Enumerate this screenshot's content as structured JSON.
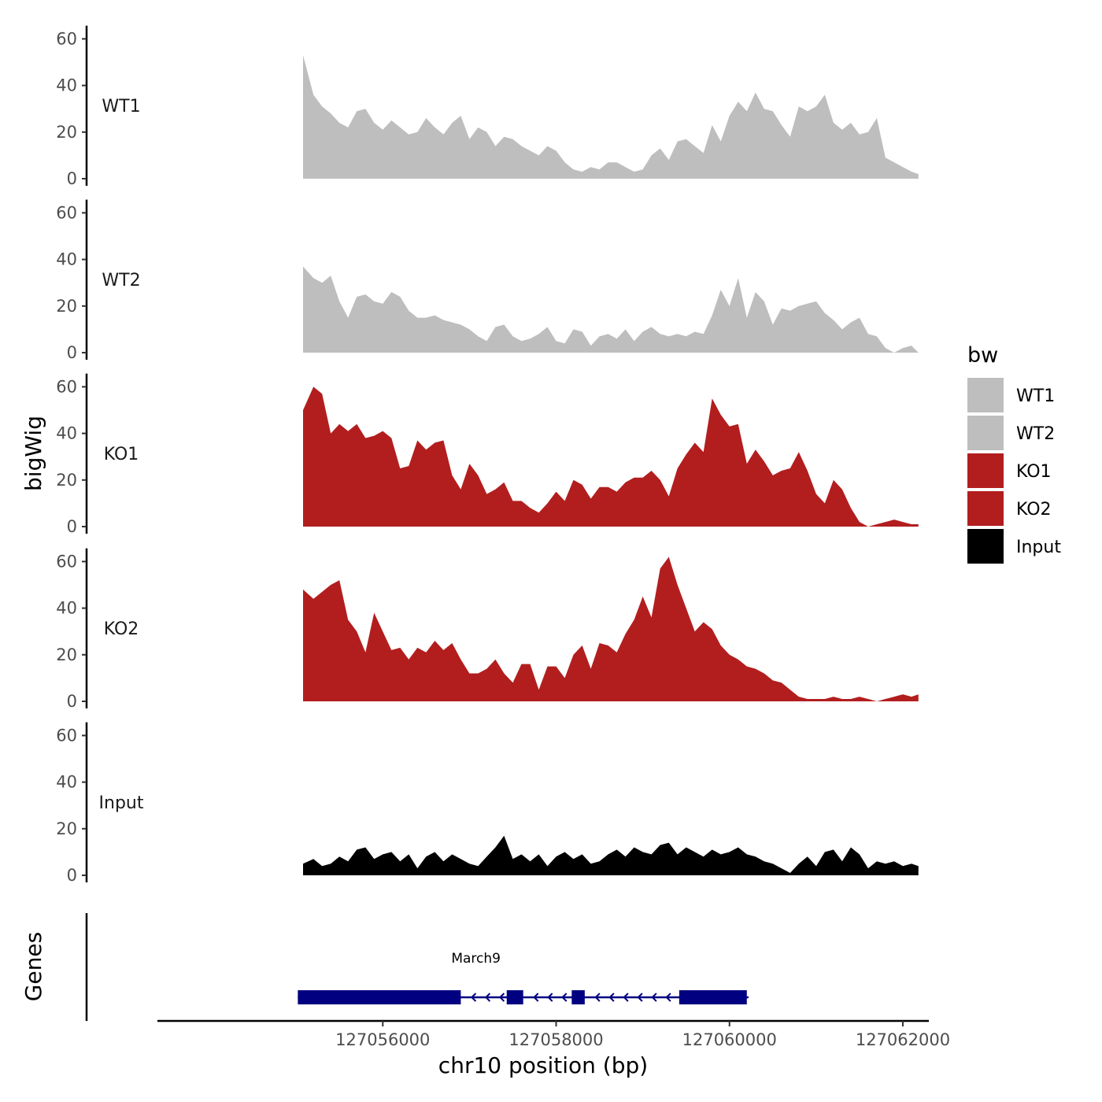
{
  "chart_data": {
    "type": "area",
    "chromosome": "chr10",
    "xlabel": "chr10 position (bp)",
    "ylabel": "bigWig",
    "gene_track_label": "Genes",
    "xlim": [
      127053400,
      127062300
    ],
    "x_ticks": [
      127056000,
      127058000,
      127060000,
      127062000
    ],
    "x_tick_labels": [
      "127056000",
      "127058000",
      "127060000",
      "127062000"
    ],
    "ylim": [
      0,
      65
    ],
    "y_ticks": [
      0,
      20,
      40,
      60
    ],
    "y_tick_labels": [
      "0",
      "20",
      "40",
      "60"
    ],
    "legend": {
      "title": "bw",
      "entries": [
        {
          "label": "WT1",
          "color": "#BEBEBE"
        },
        {
          "label": "WT2",
          "color": "#BEBEBE"
        },
        {
          "label": "KO1",
          "color": "#B21E1E"
        },
        {
          "label": "KO2",
          "color": "#B21E1E"
        },
        {
          "label": "Input",
          "color": "#000000"
        }
      ]
    },
    "series": [
      {
        "name": "WT1",
        "color": "#BEBEBE",
        "x": [
          127055080,
          127055200,
          127055300,
          127055400,
          127055500,
          127055600,
          127055700,
          127055800,
          127055900,
          127056000,
          127056100,
          127056200,
          127056300,
          127056400,
          127056500,
          127056600,
          127056700,
          127056800,
          127056900,
          127057000,
          127057100,
          127057200,
          127057300,
          127057400,
          127057500,
          127057600,
          127057700,
          127057800,
          127057900,
          127058000,
          127058100,
          127058200,
          127058300,
          127058400,
          127058500,
          127058600,
          127058700,
          127058800,
          127058900,
          127059000,
          127059100,
          127059200,
          127059300,
          127059400,
          127059500,
          127059600,
          127059700,
          127059800,
          127059900,
          127060000,
          127060100,
          127060200,
          127060300,
          127060400,
          127060500,
          127060600,
          127060700,
          127060800,
          127060900,
          127061000,
          127061100,
          127061200,
          127061300,
          127061400,
          127061500,
          127061600,
          127061700,
          127061800,
          127061900,
          127062000,
          127062100,
          127062180
        ],
        "values": [
          53,
          36,
          31,
          28,
          24,
          22,
          29,
          30,
          24,
          21,
          25,
          22,
          19,
          20,
          26,
          22,
          19,
          24,
          27,
          17,
          22,
          20,
          14,
          18,
          17,
          14,
          12,
          10,
          14,
          12,
          7,
          4,
          3,
          5,
          4,
          7,
          7,
          5,
          3,
          4,
          10,
          13,
          8,
          16,
          17,
          14,
          11,
          23,
          16,
          27,
          33,
          29,
          37,
          30,
          29,
          23,
          18,
          31,
          29,
          31,
          36,
          24,
          21,
          24,
          19,
          20,
          26,
          9,
          7,
          5,
          3,
          2
        ]
      },
      {
        "name": "WT2",
        "color": "#BEBEBE",
        "x": [
          127055080,
          127055200,
          127055300,
          127055400,
          127055500,
          127055600,
          127055700,
          127055800,
          127055900,
          127056000,
          127056100,
          127056200,
          127056300,
          127056400,
          127056500,
          127056600,
          127056700,
          127056800,
          127056900,
          127057000,
          127057100,
          127057200,
          127057300,
          127057400,
          127057500,
          127057600,
          127057700,
          127057800,
          127057900,
          127058000,
          127058100,
          127058200,
          127058300,
          127058400,
          127058500,
          127058600,
          127058700,
          127058800,
          127058900,
          127059000,
          127059100,
          127059200,
          127059300,
          127059400,
          127059500,
          127059600,
          127059700,
          127059800,
          127059900,
          127060000,
          127060100,
          127060200,
          127060300,
          127060400,
          127060500,
          127060600,
          127060700,
          127060800,
          127060900,
          127061000,
          127061100,
          127061200,
          127061300,
          127061400,
          127061500,
          127061600,
          127061700,
          127061800,
          127061900,
          127062000,
          127062100,
          127062180
        ],
        "values": [
          37,
          32,
          30,
          33,
          22,
          15,
          24,
          25,
          22,
          21,
          26,
          24,
          18,
          15,
          15,
          16,
          14,
          13,
          12,
          10,
          7,
          5,
          11,
          12,
          7,
          5,
          6,
          8,
          11,
          5,
          4,
          10,
          9,
          3,
          7,
          8,
          6,
          10,
          5,
          9,
          11,
          8,
          7,
          8,
          7,
          9,
          8,
          16,
          27,
          20,
          32,
          15,
          26,
          22,
          12,
          19,
          18,
          20,
          21,
          22,
          17,
          14,
          10,
          13,
          15,
          8,
          7,
          2,
          0,
          2,
          3,
          0
        ]
      },
      {
        "name": "KO1",
        "color": "#B21E1E",
        "x": [
          127055080,
          127055200,
          127055300,
          127055400,
          127055500,
          127055600,
          127055700,
          127055800,
          127055900,
          127056000,
          127056100,
          127056200,
          127056300,
          127056400,
          127056500,
          127056600,
          127056700,
          127056800,
          127056900,
          127057000,
          127057100,
          127057200,
          127057300,
          127057400,
          127057500,
          127057600,
          127057700,
          127057800,
          127057900,
          127058000,
          127058100,
          127058200,
          127058300,
          127058400,
          127058500,
          127058600,
          127058700,
          127058800,
          127058900,
          127059000,
          127059100,
          127059200,
          127059300,
          127059400,
          127059500,
          127059600,
          127059700,
          127059800,
          127059900,
          127060000,
          127060100,
          127060200,
          127060300,
          127060400,
          127060500,
          127060600,
          127060700,
          127060800,
          127060900,
          127061000,
          127061100,
          127061200,
          127061300,
          127061400,
          127061500,
          127061600,
          127061700,
          127061800,
          127061900,
          127062000,
          127062100,
          127062180
        ],
        "values": [
          50,
          60,
          57,
          40,
          44,
          41,
          44,
          38,
          39,
          41,
          38,
          25,
          26,
          37,
          33,
          36,
          37,
          22,
          16,
          27,
          22,
          14,
          16,
          19,
          11,
          11,
          8,
          6,
          10,
          15,
          11,
          20,
          18,
          12,
          17,
          17,
          15,
          19,
          21,
          21,
          24,
          20,
          13,
          25,
          31,
          36,
          32,
          55,
          48,
          43,
          44,
          27,
          33,
          28,
          22,
          24,
          25,
          32,
          24,
          14,
          10,
          20,
          16,
          8,
          2,
          0,
          1,
          2,
          3,
          2,
          1,
          1
        ]
      },
      {
        "name": "KO2",
        "color": "#B21E1E",
        "x": [
          127055080,
          127055200,
          127055300,
          127055400,
          127055500,
          127055600,
          127055700,
          127055800,
          127055900,
          127056000,
          127056100,
          127056200,
          127056300,
          127056400,
          127056500,
          127056600,
          127056700,
          127056800,
          127056900,
          127057000,
          127057100,
          127057200,
          127057300,
          127057400,
          127057500,
          127057600,
          127057700,
          127057800,
          127057900,
          127058000,
          127058100,
          127058200,
          127058300,
          127058400,
          127058500,
          127058600,
          127058700,
          127058800,
          127058900,
          127059000,
          127059100,
          127059200,
          127059300,
          127059400,
          127059500,
          127059600,
          127059700,
          127059800,
          127059900,
          127060000,
          127060100,
          127060200,
          127060300,
          127060400,
          127060500,
          127060600,
          127060700,
          127060800,
          127060900,
          127061000,
          127061100,
          127061200,
          127061300,
          127061400,
          127061500,
          127061600,
          127061700,
          127061800,
          127061900,
          127062000,
          127062100,
          127062180
        ],
        "values": [
          48,
          44,
          47,
          50,
          52,
          35,
          30,
          21,
          38,
          30,
          22,
          23,
          18,
          23,
          21,
          26,
          22,
          25,
          18,
          12,
          12,
          14,
          18,
          12,
          8,
          16,
          16,
          5,
          15,
          15,
          10,
          20,
          24,
          14,
          25,
          24,
          21,
          29,
          35,
          45,
          36,
          57,
          62,
          50,
          40,
          30,
          34,
          31,
          24,
          20,
          18,
          15,
          14,
          12,
          9,
          8,
          5,
          2,
          1,
          1,
          1,
          2,
          1,
          1,
          2,
          1,
          0,
          1,
          2,
          3,
          2,
          3
        ]
      },
      {
        "name": "Input",
        "color": "#000000",
        "x": [
          127055080,
          127055200,
          127055300,
          127055400,
          127055500,
          127055600,
          127055700,
          127055800,
          127055900,
          127056000,
          127056100,
          127056200,
          127056300,
          127056400,
          127056500,
          127056600,
          127056700,
          127056800,
          127056900,
          127057000,
          127057100,
          127057200,
          127057300,
          127057400,
          127057500,
          127057600,
          127057700,
          127057800,
          127057900,
          127058000,
          127058100,
          127058200,
          127058300,
          127058400,
          127058500,
          127058600,
          127058700,
          127058800,
          127058900,
          127059000,
          127059100,
          127059200,
          127059300,
          127059400,
          127059500,
          127059600,
          127059700,
          127059800,
          127059900,
          127060000,
          127060100,
          127060200,
          127060300,
          127060400,
          127060500,
          127060600,
          127060700,
          127060800,
          127060900,
          127061000,
          127061100,
          127061200,
          127061300,
          127061400,
          127061500,
          127061600,
          127061700,
          127061800,
          127061900,
          127062000,
          127062100,
          127062180
        ],
        "values": [
          5,
          7,
          4,
          5,
          8,
          6,
          11,
          12,
          7,
          9,
          10,
          6,
          9,
          3,
          8,
          10,
          6,
          9,
          7,
          5,
          4,
          8,
          12,
          17,
          7,
          9,
          6,
          9,
          4,
          8,
          10,
          7,
          9,
          5,
          6,
          9,
          11,
          8,
          12,
          10,
          9,
          13,
          14,
          9,
          12,
          10,
          8,
          11,
          9,
          10,
          12,
          9,
          8,
          6,
          5,
          3,
          1,
          5,
          8,
          4,
          10,
          11,
          6,
          12,
          9,
          3,
          6,
          5,
          6,
          4,
          5,
          4
        ]
      }
    ],
    "genes": [
      {
        "name": "March9",
        "strand": "-",
        "color": "#000080",
        "start": 127055020,
        "end": 127060220,
        "exons": [
          [
            127055020,
            127056900
          ],
          [
            127057430,
            127057620
          ],
          [
            127058180,
            127058330
          ],
          [
            127059420,
            127060200
          ]
        ]
      }
    ]
  }
}
